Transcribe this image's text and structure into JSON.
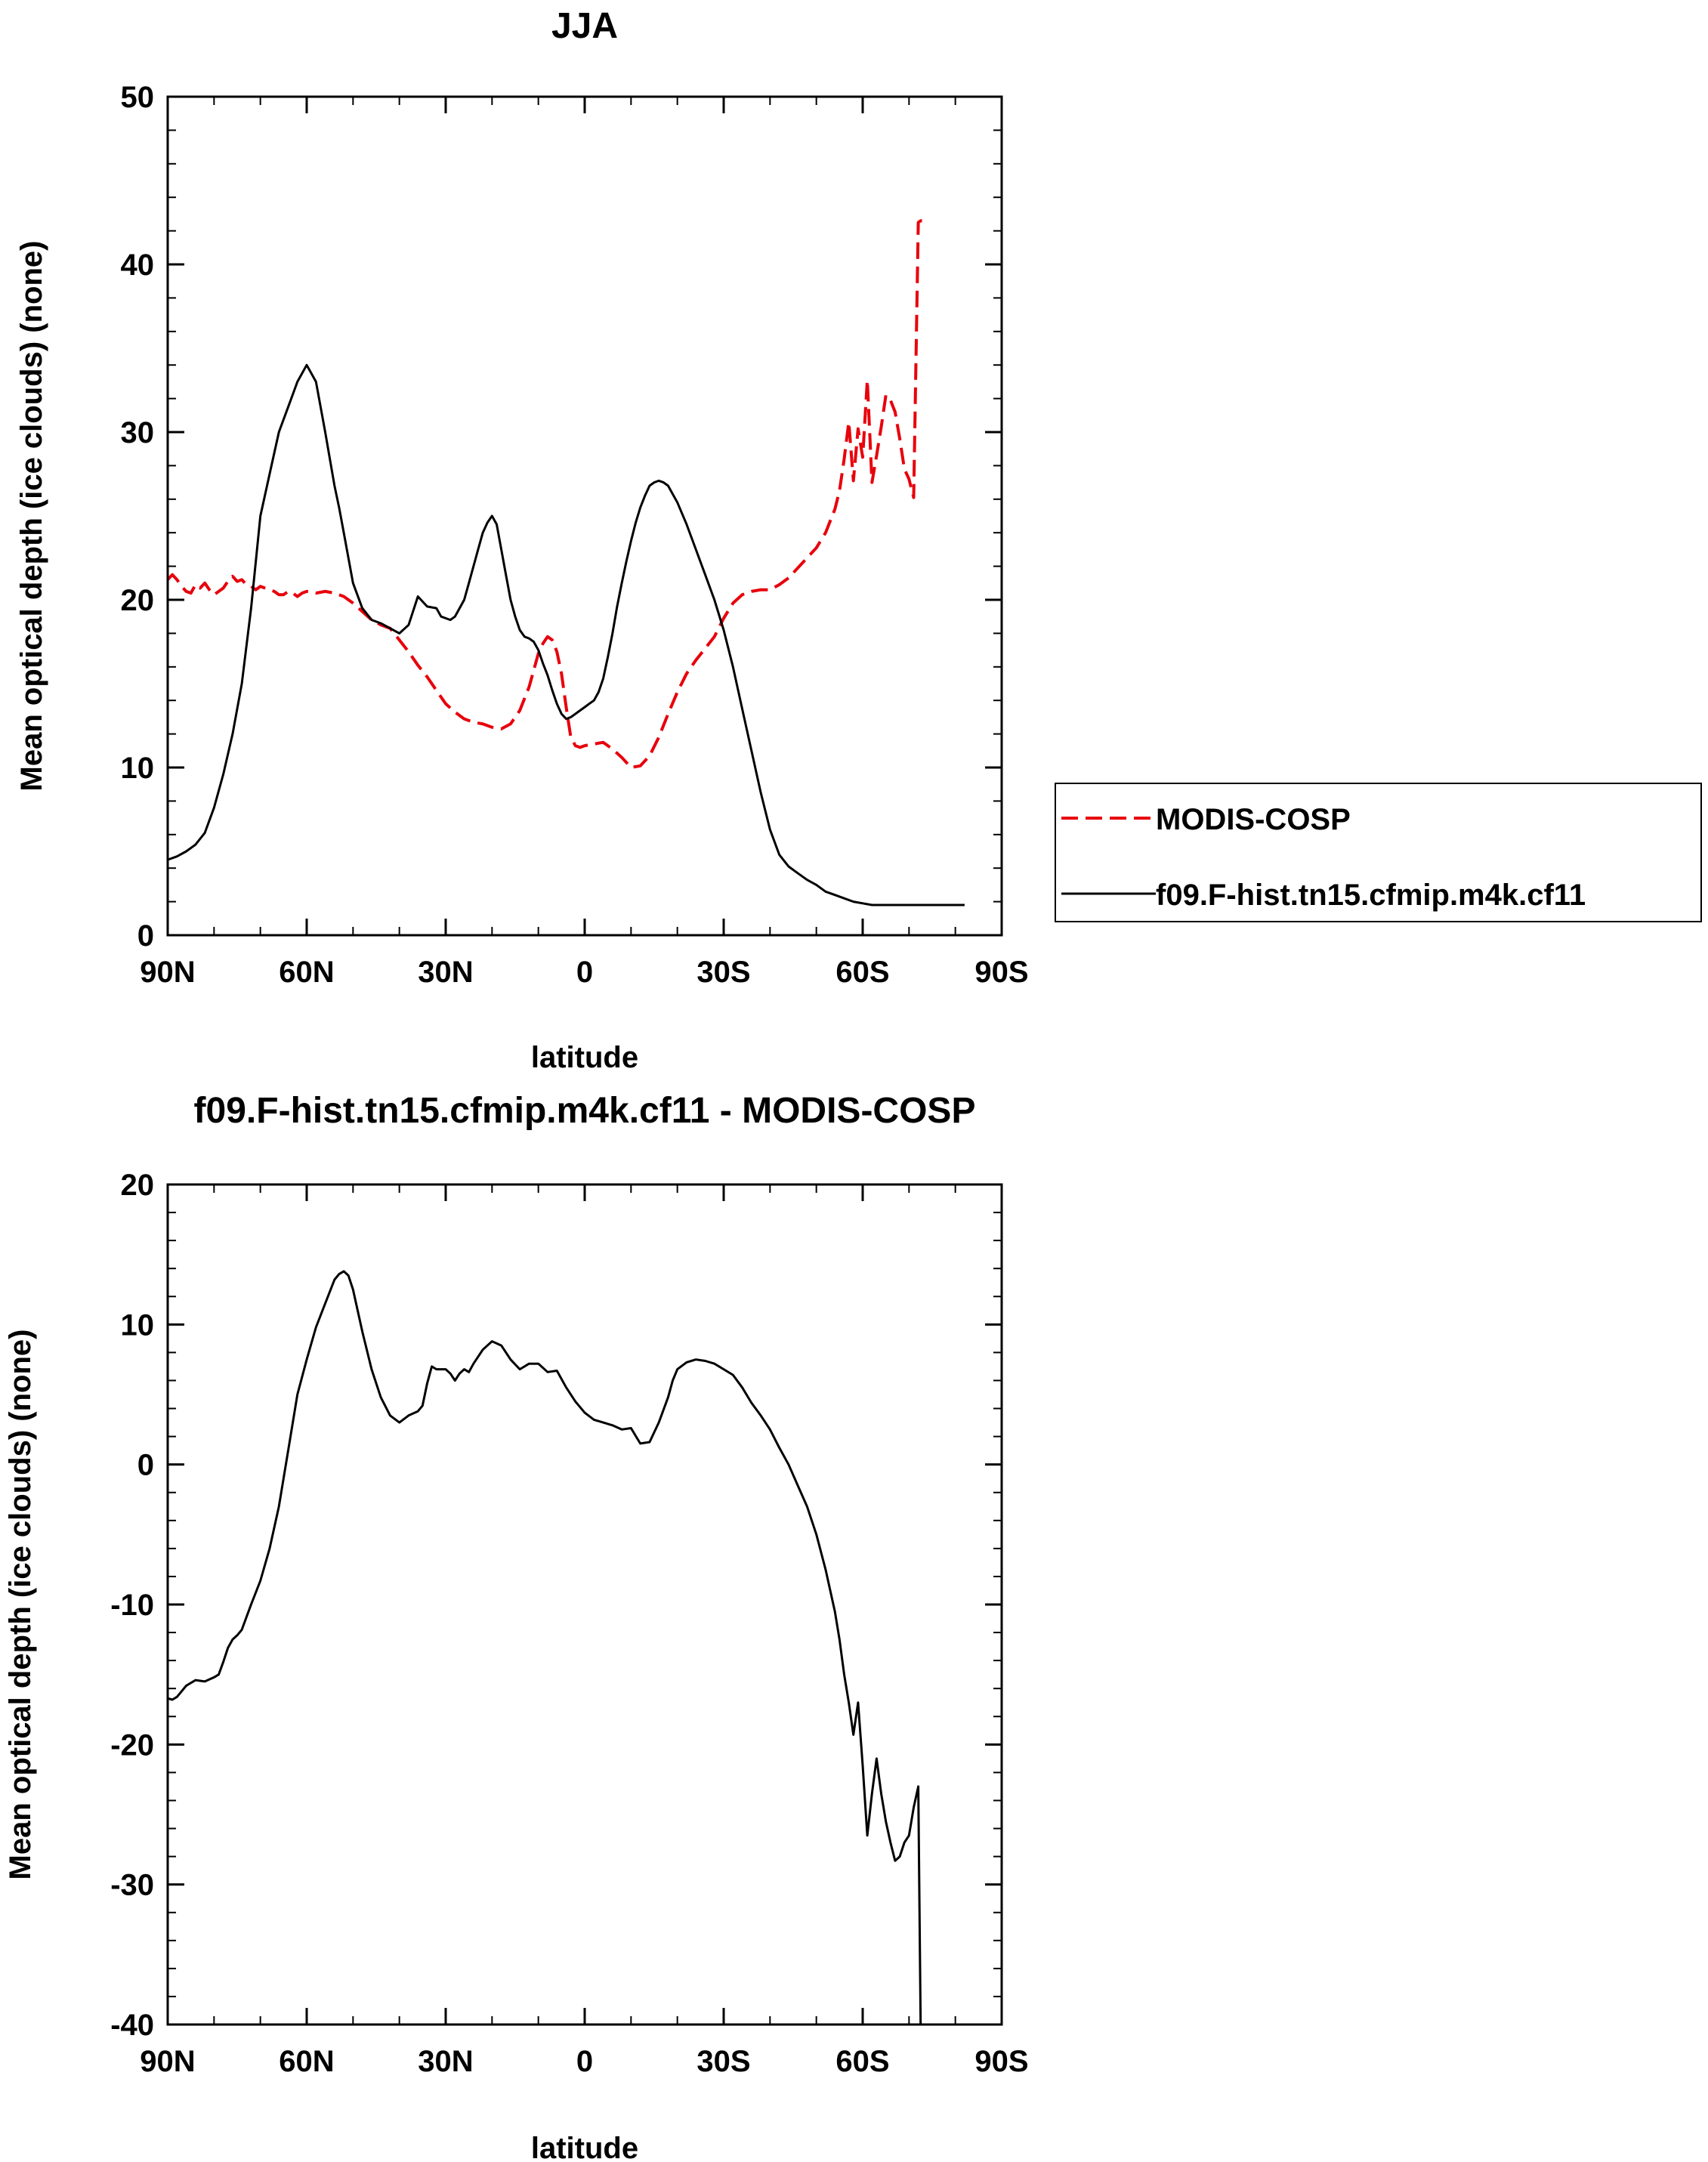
{
  "chart_data": [
    {
      "type": "line",
      "title": "JJA",
      "xlabel": "latitude",
      "ylabel": "Mean optical depth (ice clouds) (none)",
      "xlim": [
        90,
        -90
      ],
      "ylim": [
        0,
        50
      ],
      "xticks": [
        90,
        60,
        30,
        0,
        -30,
        -60,
        -90
      ],
      "xtick_labels": [
        "90N",
        "60N",
        "30N",
        "0",
        "30S",
        "60S",
        "90S"
      ],
      "yticks": [
        0,
        10,
        20,
        30,
        40,
        50
      ],
      "ytick_labels": [
        "0",
        "10",
        "20",
        "30",
        "40",
        "50"
      ],
      "legend": {
        "position": "right",
        "entries": [
          {
            "label": "MODIS-COSP",
            "color": "#e8000b",
            "style": "dashed"
          },
          {
            "label": "f09.F-hist.tn15.cfmip.m4k.cf11",
            "color": "#000000",
            "style": "solid"
          }
        ]
      },
      "series": [
        {
          "name": "MODIS-COSP",
          "color": "#e8000b",
          "style": "dashed",
          "x": [
            90,
            89,
            88,
            87,
            86,
            85,
            84,
            83,
            82,
            81,
            80,
            79,
            78,
            77,
            76,
            75,
            74,
            73,
            72,
            71,
            70,
            69,
            68,
            67,
            66,
            65,
            64,
            63,
            62,
            61,
            60,
            58,
            56,
            54,
            52,
            50,
            48,
            46,
            44,
            42,
            40,
            38,
            36,
            34,
            32,
            30,
            28,
            26,
            24,
            22,
            20,
            18,
            16,
            14,
            12,
            10,
            9,
            8,
            7,
            6,
            5,
            4,
            3,
            2,
            1,
            0,
            -2,
            -4,
            -6,
            -8,
            -10,
            -12,
            -14,
            -16,
            -18,
            -20,
            -22,
            -24,
            -26,
            -28,
            -30,
            -32,
            -34,
            -36,
            -38,
            -40,
            -42,
            -44,
            -46,
            -48,
            -50,
            -52,
            -54,
            -55,
            -56,
            -57,
            -58,
            -59,
            -60,
            -61,
            -62,
            -63,
            -64,
            -65,
            -66,
            -67,
            -68,
            -69,
            -70,
            -71,
            -72,
            -72.5,
            -73
          ],
          "values": [
            21.2,
            21.5,
            21.2,
            20.8,
            20.5,
            20.4,
            20.9,
            20.7,
            21.0,
            20.6,
            20.3,
            20.5,
            20.7,
            21.1,
            21.4,
            21.1,
            21.2,
            20.9,
            20.8,
            20.6,
            20.8,
            20.7,
            20.6,
            20.5,
            20.3,
            20.3,
            20.5,
            20.4,
            20.2,
            20.4,
            20.5,
            20.4,
            20.5,
            20.4,
            20.2,
            19.8,
            19.3,
            18.8,
            18.5,
            18.3,
            17.6,
            16.9,
            16.1,
            15.4,
            14.6,
            13.8,
            13.3,
            12.9,
            12.7,
            12.6,
            12.4,
            12.3,
            12.6,
            13.4,
            14.8,
            16.8,
            17.4,
            17.8,
            17.6,
            16.9,
            15.6,
            13.6,
            11.8,
            11.3,
            11.2,
            11.3,
            11.4,
            11.5,
            11.1,
            10.6,
            10.0,
            10.1,
            10.7,
            11.8,
            13.2,
            14.5,
            15.6,
            16.4,
            17.1,
            17.8,
            18.9,
            19.8,
            20.3,
            20.5,
            20.6,
            20.6,
            20.9,
            21.3,
            21.9,
            22.5,
            23.1,
            24.0,
            25.4,
            26.5,
            28.4,
            30.6,
            27.1,
            30.2,
            28.5,
            33.1,
            27.0,
            28.6,
            30.3,
            32.2,
            31.9,
            31.2,
            29.6,
            27.8,
            27.2,
            26.1,
            42.5,
            42.6,
            42.6
          ]
        },
        {
          "name": "f09.F-hist.tn15.cfmip.m4k.cf11",
          "color": "#000000",
          "style": "solid",
          "x": [
            90,
            88,
            86,
            84,
            82,
            80,
            78,
            76,
            74,
            72,
            70,
            68,
            66,
            64,
            62,
            60,
            58,
            56,
            54,
            53,
            52,
            51,
            50,
            48,
            46,
            44,
            42,
            40,
            38,
            36,
            34,
            32,
            31,
            30,
            29,
            28,
            27,
            26,
            25,
            24,
            23,
            22,
            21,
            20,
            19,
            18,
            17,
            16,
            15,
            14,
            13,
            12,
            11,
            10,
            9,
            8,
            7,
            6,
            5,
            4,
            3,
            2,
            1,
            0,
            -1,
            -2,
            -3,
            -4,
            -5,
            -6,
            -7,
            -8,
            -9,
            -10,
            -11,
            -12,
            -13,
            -14,
            -15,
            -16,
            -17,
            -18,
            -20,
            -22,
            -24,
            -26,
            -28,
            -30,
            -32,
            -34,
            -36,
            -38,
            -40,
            -42,
            -44,
            -46,
            -48,
            -50,
            -52,
            -54,
            -56,
            -58,
            -60,
            -62,
            -64,
            -66,
            -68,
            -70,
            -72,
            -74,
            -76,
            -78,
            -80,
            -82
          ],
          "values": [
            4.5,
            4.7,
            5.0,
            5.4,
            6.1,
            7.6,
            9.6,
            12.0,
            15.0,
            19.5,
            25.0,
            27.5,
            30.0,
            31.5,
            33.0,
            34.0,
            33.0,
            30.0,
            26.8,
            25.5,
            24.0,
            22.5,
            21.0,
            19.5,
            18.8,
            18.6,
            18.3,
            18.0,
            18.5,
            20.2,
            19.6,
            19.5,
            19.0,
            18.9,
            18.8,
            19.0,
            19.5,
            20.0,
            21.0,
            22.0,
            23.0,
            24.0,
            24.6,
            25.0,
            24.5,
            23.0,
            21.5,
            20.0,
            19.0,
            18.2,
            17.8,
            17.7,
            17.5,
            17.0,
            16.2,
            15.5,
            14.6,
            13.8,
            13.2,
            12.9,
            13.0,
            13.2,
            13.4,
            13.6,
            13.8,
            14.0,
            14.5,
            15.3,
            16.6,
            18.0,
            19.6,
            21.0,
            22.3,
            23.5,
            24.6,
            25.5,
            26.2,
            26.8,
            27.0,
            27.1,
            27.0,
            26.8,
            25.8,
            24.5,
            23.0,
            21.5,
            20.0,
            18.2,
            16.0,
            13.5,
            11.0,
            8.5,
            6.3,
            4.8,
            4.1,
            3.7,
            3.3,
            3.0,
            2.6,
            2.4,
            2.2,
            2.0,
            1.9,
            1.8,
            1.8,
            1.8,
            1.8,
            1.8,
            1.8,
            1.8,
            1.8,
            1.8,
            1.8,
            1.8
          ],
          "x_end": -82
        }
      ]
    },
    {
      "type": "line",
      "title": "f09.F-hist.tn15.cfmip.m4k.cf11 - MODIS-COSP",
      "xlabel": "latitude",
      "ylabel": "Mean optical depth (ice clouds) (none)",
      "xlim": [
        90,
        -90
      ],
      "ylim": [
        -40,
        20
      ],
      "xticks": [
        90,
        60,
        30,
        0,
        -30,
        -60,
        -90
      ],
      "xtick_labels": [
        "90N",
        "60N",
        "30N",
        "0",
        "30S",
        "60S",
        "90S"
      ],
      "yticks": [
        -40,
        -30,
        -20,
        -10,
        0,
        10,
        20
      ],
      "ytick_labels": [
        "-40",
        "-30",
        "-20",
        "-10",
        "0",
        "10",
        "20"
      ],
      "series": [
        {
          "name": "f09.F-hist.tn15.cfmip.m4k.cf11 - MODIS-COSP",
          "color": "#000000",
          "style": "solid",
          "x": [
            90,
            89,
            88,
            86,
            84,
            82,
            80,
            79,
            78,
            77,
            76,
            75,
            74,
            72,
            70,
            68,
            66,
            64,
            62,
            60,
            58,
            56,
            54,
            53,
            52,
            51,
            50,
            48,
            46,
            44,
            42,
            40,
            38,
            36,
            35,
            34,
            33,
            32,
            31,
            30,
            29,
            28,
            27,
            26,
            25,
            24,
            22,
            20,
            18,
            16,
            14,
            12,
            10,
            8,
            6,
            4,
            2,
            0,
            -2,
            -4,
            -6,
            -8,
            -10,
            -12,
            -14,
            -16,
            -18,
            -19,
            -20,
            -22,
            -24,
            -26,
            -28,
            -30,
            -32,
            -34,
            -36,
            -38,
            -40,
            -42,
            -44,
            -46,
            -48,
            -50,
            -52,
            -54,
            -55,
            -56,
            -57,
            -58,
            -59,
            -60,
            -61,
            -62,
            -63,
            -64,
            -65,
            -66,
            -67,
            -68,
            -69,
            -70,
            -71,
            -72,
            -72.5,
            -73
          ],
          "values": [
            -16.7,
            -16.8,
            -16.6,
            -15.8,
            -15.4,
            -15.5,
            -15.2,
            -15.0,
            -14.1,
            -13.1,
            -12.5,
            -12.2,
            -11.8,
            -10.0,
            -8.3,
            -6.0,
            -3.0,
            1.0,
            5.0,
            7.5,
            9.8,
            11.5,
            13.2,
            13.6,
            13.8,
            13.5,
            12.5,
            9.5,
            6.8,
            4.8,
            3.5,
            3.0,
            3.5,
            3.8,
            4.2,
            5.8,
            7.0,
            6.8,
            6.8,
            6.8,
            6.5,
            6.0,
            6.5,
            6.8,
            6.6,
            7.2,
            8.2,
            8.8,
            8.5,
            7.5,
            6.8,
            7.2,
            7.2,
            6.6,
            6.7,
            5.5,
            4.5,
            3.7,
            3.2,
            3.0,
            2.8,
            2.5,
            2.6,
            1.5,
            1.6,
            3.0,
            4.8,
            6.0,
            6.8,
            7.3,
            7.5,
            7.4,
            7.2,
            6.8,
            6.4,
            5.5,
            4.4,
            3.5,
            2.5,
            1.2,
            0.0,
            -1.5,
            -3.0,
            -5.0,
            -7.5,
            -10.5,
            -12.5,
            -15.0,
            -17.0,
            -19.3,
            -17.0,
            -21.5,
            -26.5,
            -23.5,
            -21.0,
            -23.5,
            -25.5,
            -27.0,
            -28.3,
            -28.0,
            -27.0,
            -26.5,
            -24.5,
            -23.0,
            -40.0,
            -40.0
          ]
        }
      ]
    }
  ]
}
